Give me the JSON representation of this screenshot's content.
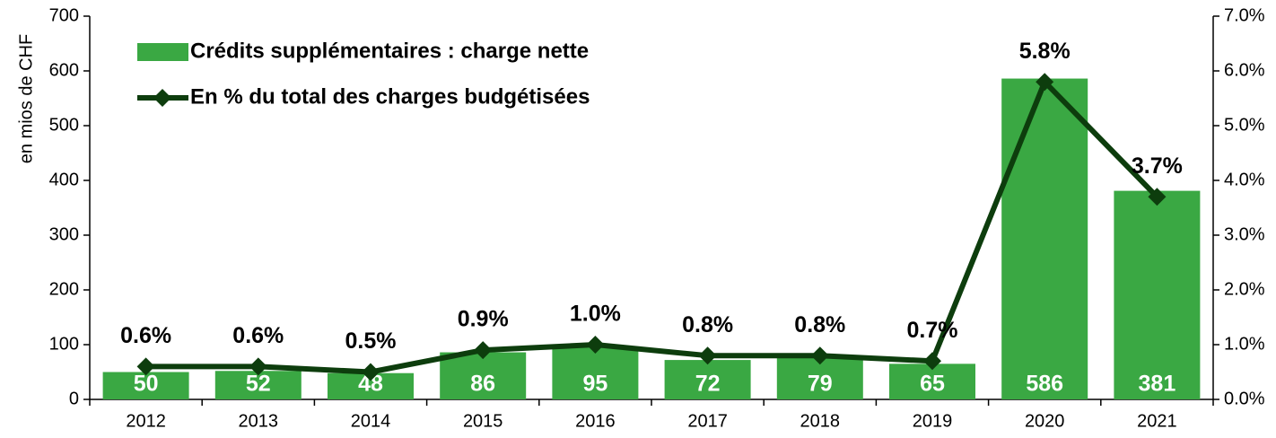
{
  "chart_data": {
    "type": "bar_line",
    "y_label": "en mios de CHF",
    "categories": [
      "2012",
      "2013",
      "2014",
      "2015",
      "2016",
      "2017",
      "2018",
      "2019",
      "2020",
      "2021"
    ],
    "series": [
      {
        "name": "Crédits supplémentaires : charge nette",
        "type": "bar",
        "color": "#3aa843",
        "values": [
          50,
          52,
          48,
          86,
          95,
          72,
          79,
          65,
          586,
          381
        ]
      },
      {
        "name": "En % du total des charges budgétisées",
        "type": "line",
        "axis": "y2",
        "color": "#0d3d0d",
        "values": [
          0.6,
          0.6,
          0.5,
          0.9,
          1.0,
          0.8,
          0.8,
          0.7,
          5.8,
          3.7
        ],
        "value_labels": [
          "0.6%",
          "0.6%",
          "0.5%",
          "0.9%",
          "1.0%",
          "0.8%",
          "0.8%",
          "0.7%",
          "5.8%",
          "3.7%"
        ]
      }
    ],
    "ylim": [
      0,
      700
    ],
    "yticks": [
      0,
      100,
      200,
      300,
      400,
      500,
      600,
      700
    ],
    "y2lim": [
      0,
      7
    ],
    "y2ticks": [
      {
        "value": 0,
        "label": "0.0%"
      },
      {
        "value": 1,
        "label": "1.0%"
      },
      {
        "value": 2,
        "label": "2.0%"
      },
      {
        "value": 3,
        "label": "3.0%"
      },
      {
        "value": 4,
        "label": "4.0%"
      },
      {
        "value": 5,
        "label": "5.0%"
      },
      {
        "value": 6,
        "label": "6.0%"
      },
      {
        "value": 7,
        "label": "7.0%"
      }
    ],
    "legend": "top-left",
    "grid": false
  }
}
